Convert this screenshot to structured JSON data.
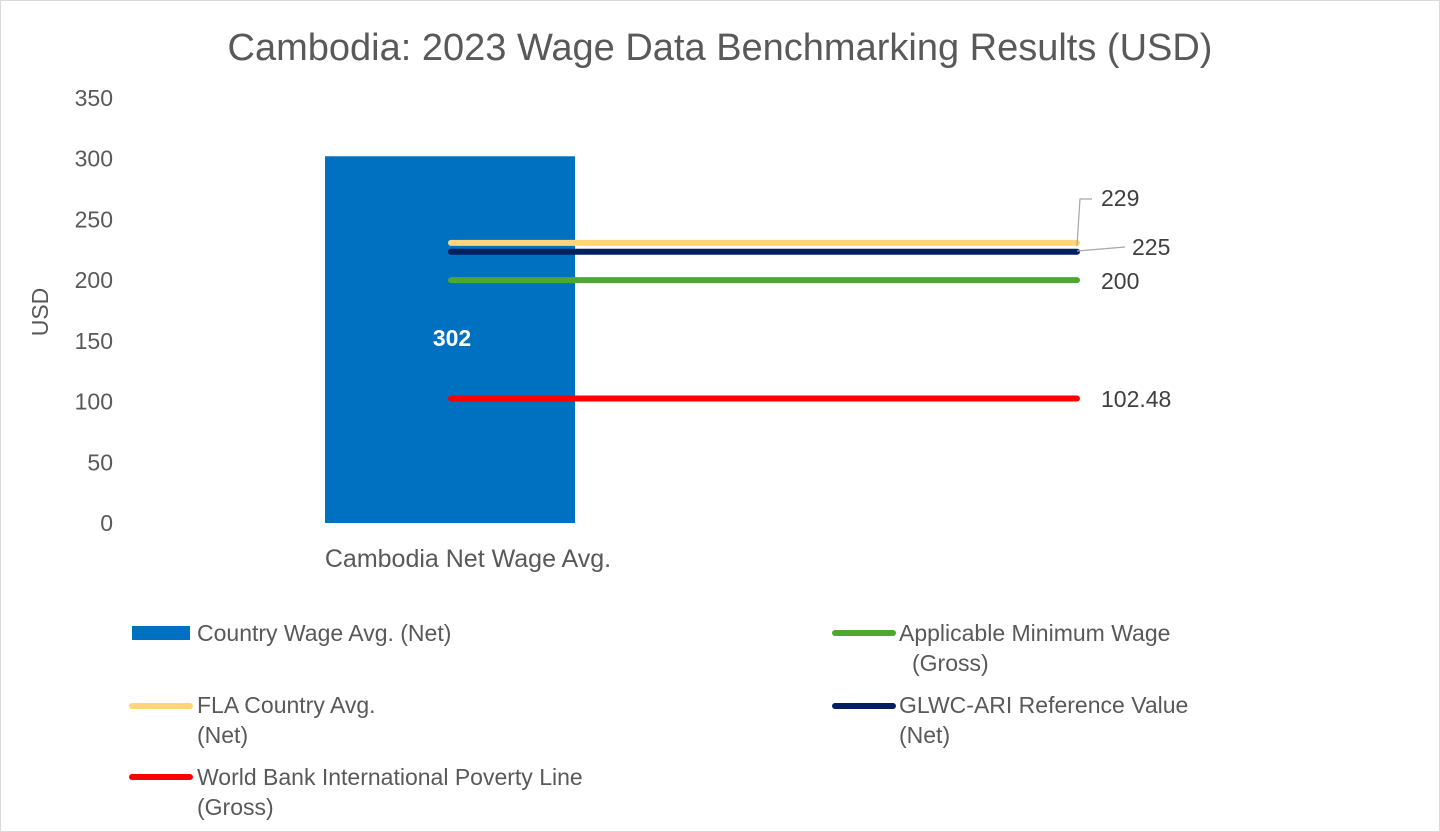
{
  "chart_data": {
    "type": "bar",
    "title": "Cambodia: 2023 Wage Data Benchmarking Results (USD)",
    "ylabel": "USD",
    "xlabel": "",
    "ylim": [
      0,
      350
    ],
    "yticks": [
      0,
      50,
      100,
      150,
      200,
      250,
      300,
      350
    ],
    "categories": [
      "Cambodia Net Wage Avg."
    ],
    "bar_series": {
      "name": "Country Wage Avg. (Net)",
      "values": [
        302
      ],
      "label": "302",
      "color": "#0070C0"
    },
    "reference_lines": [
      {
        "key": "fla",
        "name": "FLA Country Avg. (Net)",
        "value": 229,
        "label": "229",
        "color": "#FFD47A"
      },
      {
        "key": "glwc",
        "name": "GLWC-ARI Reference Value (Net)",
        "value": 225,
        "label": "225",
        "color": "#002060"
      },
      {
        "key": "minwage",
        "name": "Applicable Minimum Wage (Gross)",
        "value": 200,
        "label": "200",
        "color": "#4EA72E"
      },
      {
        "key": "poverty",
        "name": "World Bank International Poverty Line (Gross)",
        "value": 102.48,
        "label": "102.48",
        "color": "#FF0000"
      }
    ],
    "grid": false,
    "legend_position": "bottom"
  },
  "legend": {
    "country_wage": "Country Wage Avg. (Net)",
    "min_wage_line1": "Applicable Minimum Wage",
    "min_wage_line2": "(Gross)",
    "fla_line1": "FLA Country Avg.",
    "fla_line2": "(Net)",
    "glwc_line1": "GLWC-ARI Reference Value",
    "glwc_line2": "(Net)",
    "poverty_line1": "World Bank International Poverty Line",
    "poverty_line2": "(Gross)"
  }
}
